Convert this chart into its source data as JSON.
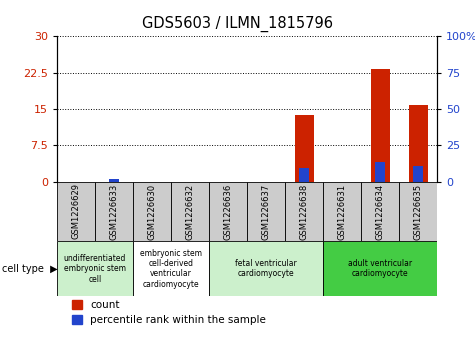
{
  "title": "GDS5603 / ILMN_1815796",
  "samples": [
    "GSM1226629",
    "GSM1226633",
    "GSM1226630",
    "GSM1226632",
    "GSM1226636",
    "GSM1226637",
    "GSM1226638",
    "GSM1226631",
    "GSM1226634",
    "GSM1226635"
  ],
  "count_values": [
    0,
    0,
    0,
    0,
    0,
    0,
    13.8,
    0,
    23.2,
    15.8
  ],
  "percentile_values": [
    0,
    1.5,
    0,
    0,
    0,
    0,
    9.0,
    0,
    13.5,
    10.5
  ],
  "ylim_left": [
    0,
    30
  ],
  "ylim_right": [
    0,
    100
  ],
  "yticks_left": [
    0,
    7.5,
    15,
    22.5,
    30
  ],
  "yticks_right": [
    0,
    25,
    50,
    75,
    100
  ],
  "ytick_labels_left": [
    "0",
    "7.5",
    "15",
    "22.5",
    "30"
  ],
  "ytick_labels_right": [
    "0",
    "25",
    "50",
    "75",
    "100%"
  ],
  "cell_type_groups": [
    {
      "label": "undifferentiated\nembryonic stem\ncell",
      "start": 0,
      "end": 2,
      "color": "#ccf0cc"
    },
    {
      "label": "embryonic stem\ncell-derived\nventricular\ncardiomyocyte",
      "start": 2,
      "end": 4,
      "color": "#ffffff"
    },
    {
      "label": "fetal ventricular\ncardiomyocyte",
      "start": 4,
      "end": 7,
      "color": "#ccf0cc"
    },
    {
      "label": "adult ventricular\ncardiomyocyte",
      "start": 7,
      "end": 10,
      "color": "#44cc44"
    }
  ],
  "bar_color_count": "#cc2200",
  "bar_color_pct": "#2244cc",
  "bar_width": 0.5,
  "pct_bar_width": 0.25,
  "grid_color": "#000000",
  "cell_type_label": "cell type",
  "legend_count_label": "count",
  "legend_pct_label": "percentile rank within the sample",
  "sample_box_color": "#cccccc",
  "plot_bg": "#ffffff"
}
